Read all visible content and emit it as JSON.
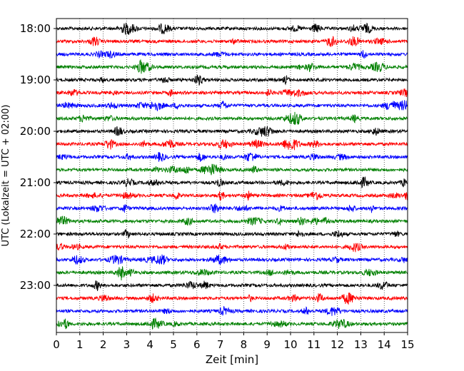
{
  "chart_data": {
    "type": "line",
    "title": "",
    "xlabel": "Zeit  [min]",
    "ylabel": "UTC (Lokalzeit = UTC + 02:00)",
    "xlim": [
      0,
      15
    ],
    "x_ticks": [
      "0",
      "1",
      "2",
      "3",
      "4",
      "5",
      "6",
      "7",
      "8",
      "9",
      "10",
      "11",
      "12",
      "13",
      "14",
      "15"
    ],
    "y_tick_labels": [
      "18:00",
      "19:00",
      "20:00",
      "21:00",
      "22:00",
      "23:00"
    ],
    "grid": "vertical dotted lines at each minute",
    "trace_colors": [
      "#000000",
      "#ff0000",
      "#0000ff",
      "#008000"
    ],
    "traces_start": "18:00",
    "trace_interval_min": 15,
    "trace_count": 24
  }
}
